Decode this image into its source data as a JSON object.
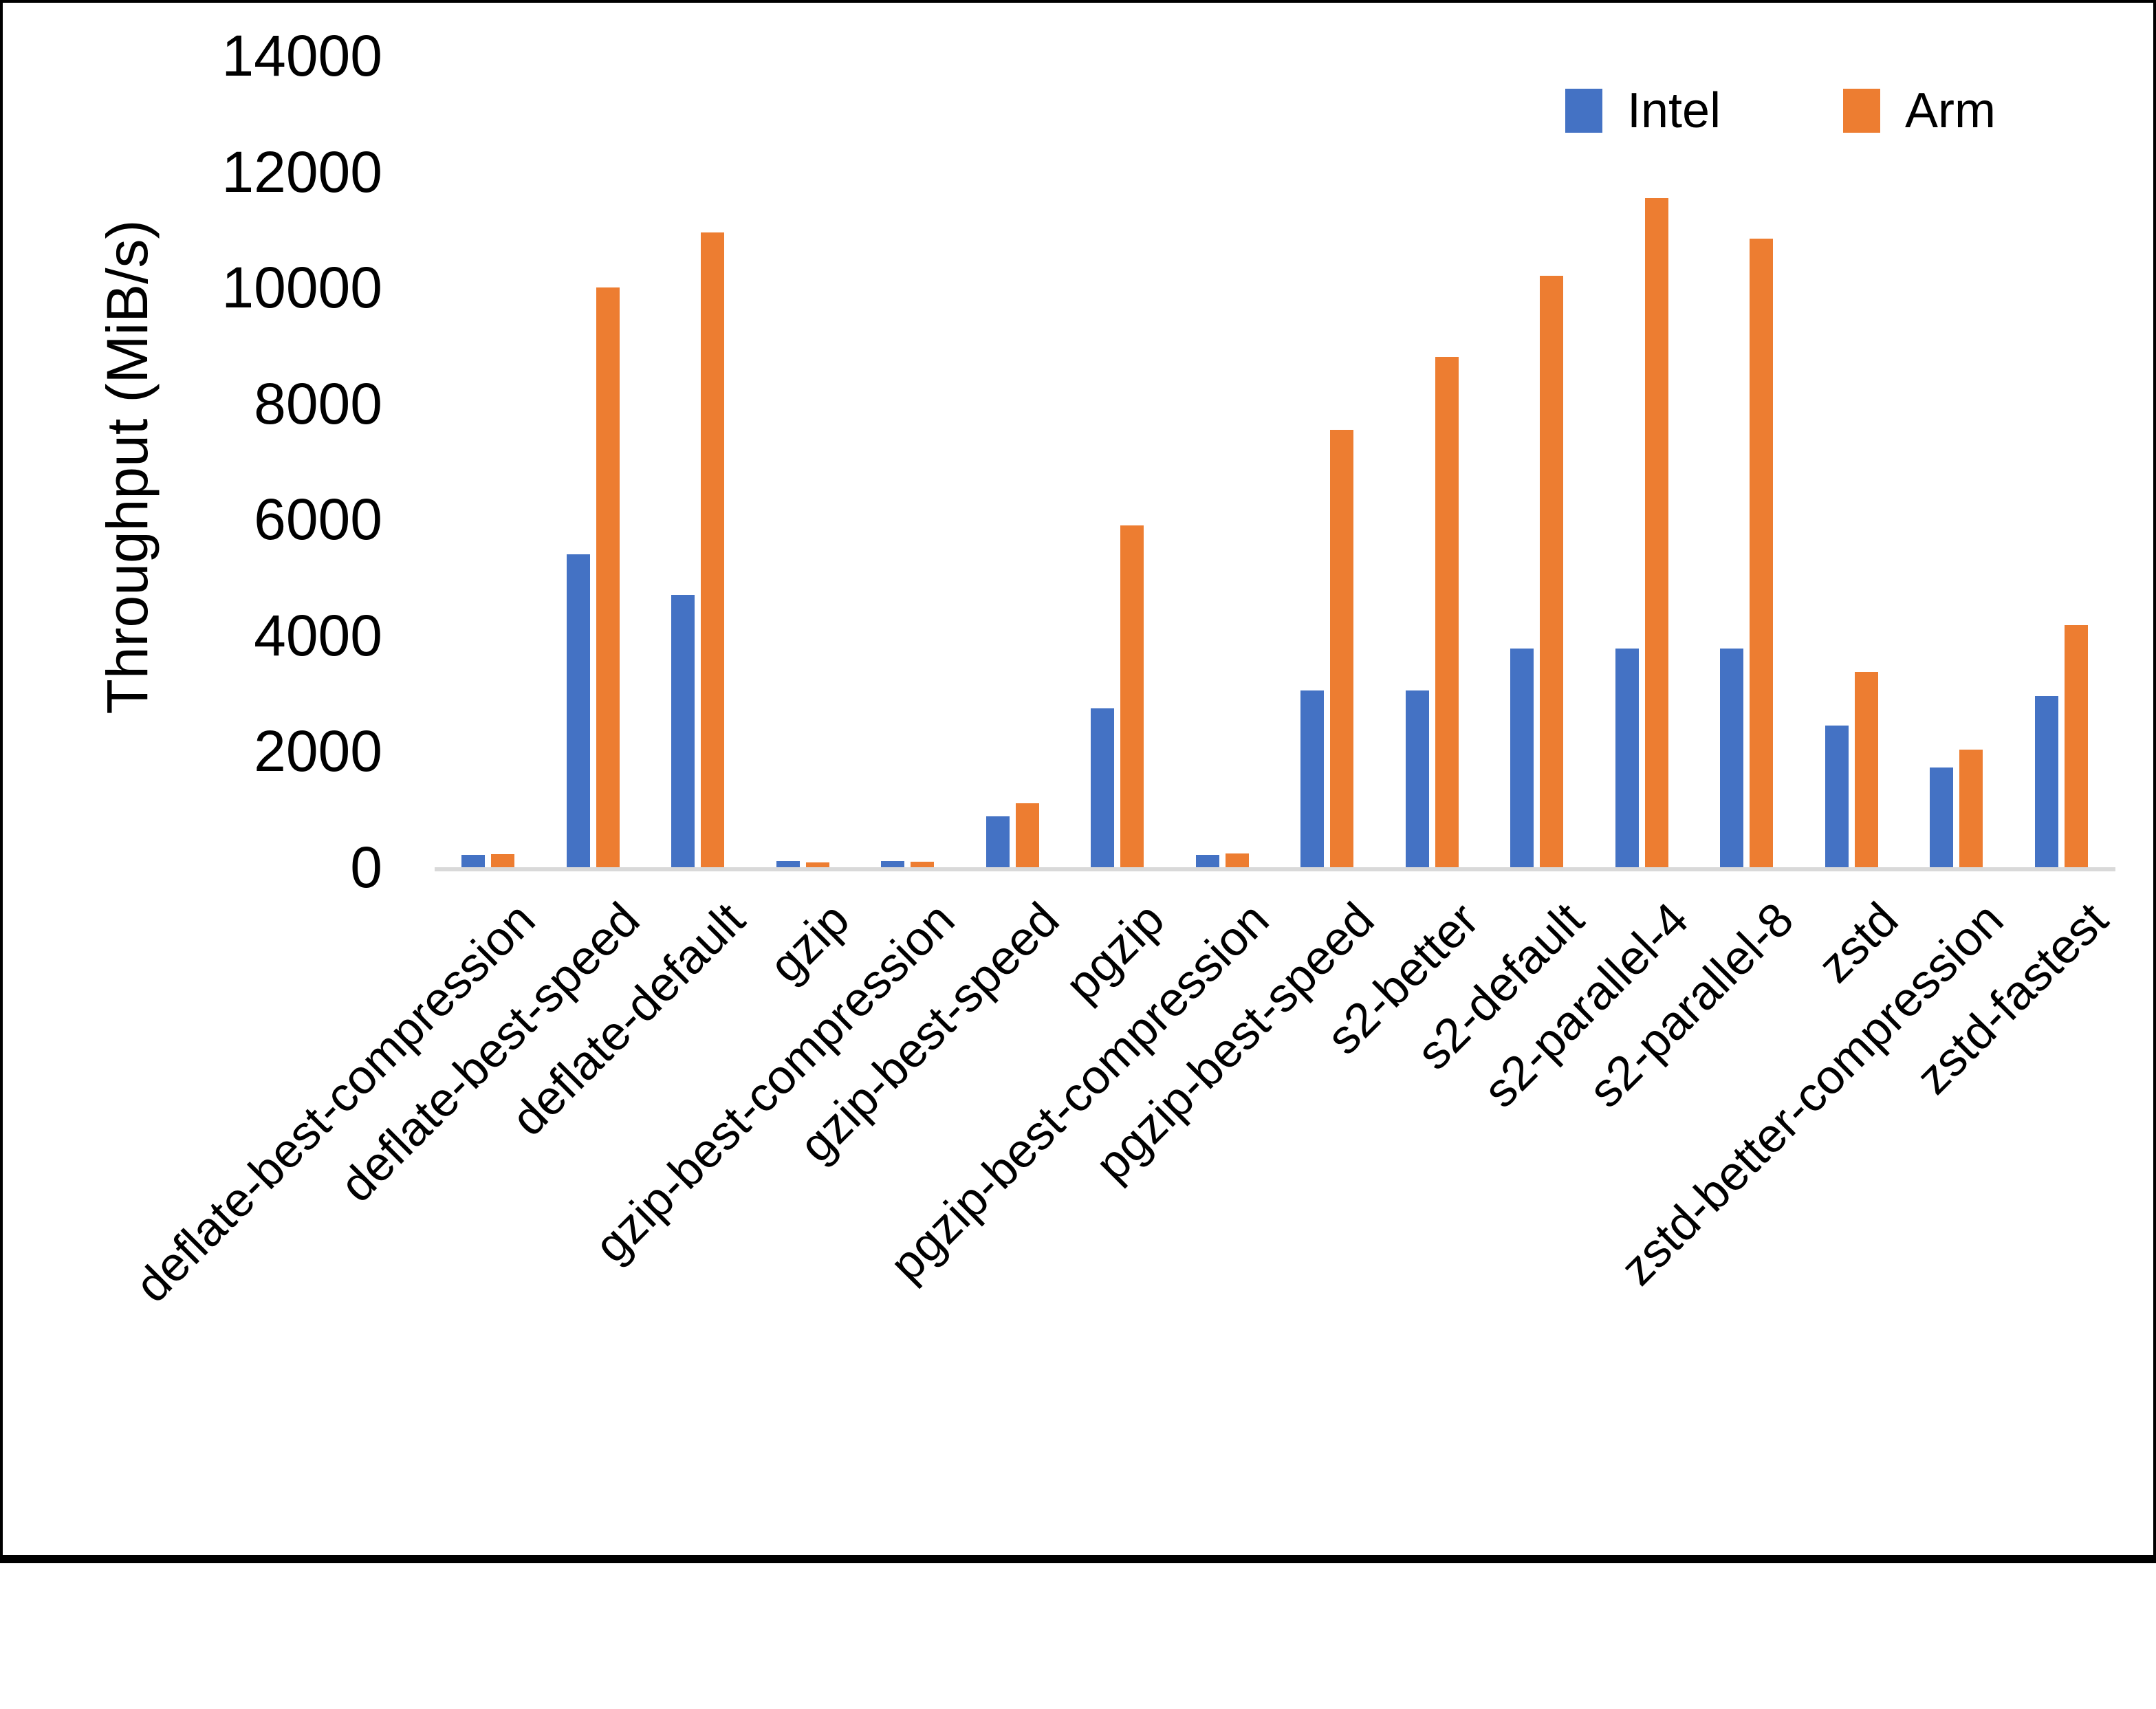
{
  "chart_data": {
    "type": "bar",
    "title": "",
    "xlabel": "",
    "ylabel": "Throughput (MiB/s)",
    "ylim": [
      0,
      14000
    ],
    "yticks": [
      0,
      2000,
      4000,
      6000,
      8000,
      10000,
      12000,
      14000
    ],
    "grid": false,
    "legend_position": "top-right",
    "categories": [
      "deflate-best-compression",
      "deflate-best-speed",
      "deflate-default",
      "gzip",
      "gzip-best-compression",
      "gzip-best-speed",
      "pgzip",
      "pgzip-best-compression",
      "pgzip-best-speed",
      "s2-better",
      "s2-default",
      "s2-parallel-4",
      "s2-parallel-8",
      "zstd",
      "zstd-better-compression",
      "zstd-fastest"
    ],
    "series": [
      {
        "name": "Intel",
        "color": "#4472C4",
        "values": [
          215,
          5400,
          4700,
          110,
          105,
          880,
          2740,
          215,
          3050,
          3050,
          3770,
          3770,
          3770,
          2440,
          1720,
          2950
        ]
      },
      {
        "name": "Arm",
        "color": "#ED7D31",
        "values": [
          225,
          10000,
          10950,
          85,
          90,
          1100,
          5900,
          235,
          7550,
          8800,
          10200,
          11550,
          10850,
          3370,
          2030,
          4180
        ]
      }
    ]
  }
}
